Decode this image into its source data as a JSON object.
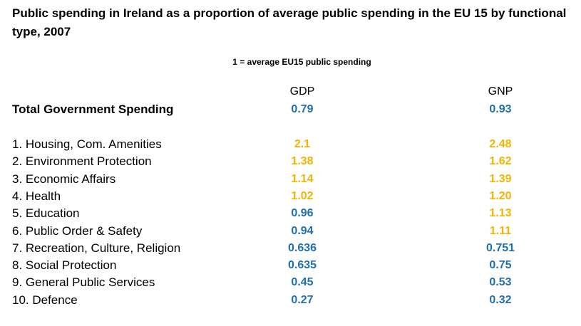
{
  "chart_data": {
    "type": "table",
    "title": "Public spending in Ireland as a proportion of average public spending in the EU 15 by functional type, 2007",
    "note": "1 = average EU15 public spending",
    "columns": [
      "GDP",
      "GNP"
    ],
    "total": {
      "label": "Total Government Spending",
      "gdp": "0.79",
      "gnp": "0.93"
    },
    "rows": [
      {
        "label": "1. Housing, Com. Amenities",
        "gdp": "2.1",
        "gnp": "2.48"
      },
      {
        "label": "2. Environment Protection",
        "gdp": "1.38",
        "gnp": "1.62"
      },
      {
        "label": "3. Economic Affairs",
        "gdp": "1.14",
        "gnp": "1.39"
      },
      {
        "label": "4. Health",
        "gdp": "1.02",
        "gnp": "1.20"
      },
      {
        "label": "5. Education",
        "gdp": "0.96",
        "gnp": "1.13"
      },
      {
        "label": "6. Public Order & Safety",
        "gdp": "0.94",
        "gnp": "1.11"
      },
      {
        "label": "7. Recreation, Culture, Religion",
        "gdp": "0.636",
        "gnp": "0.751"
      },
      {
        "label": "8. Social Protection",
        "gdp": "0.635",
        "gnp": "0.75"
      },
      {
        "label": "9. General Public Services",
        "gdp": "0.45",
        "gnp": "0.53"
      },
      {
        "label": "10. Defence",
        "gdp": "0.27",
        "gnp": "0.32"
      }
    ]
  },
  "colors": {
    "above_average": "#f2b400",
    "below_average": "#1f6fb2",
    "text": "#000000"
  }
}
